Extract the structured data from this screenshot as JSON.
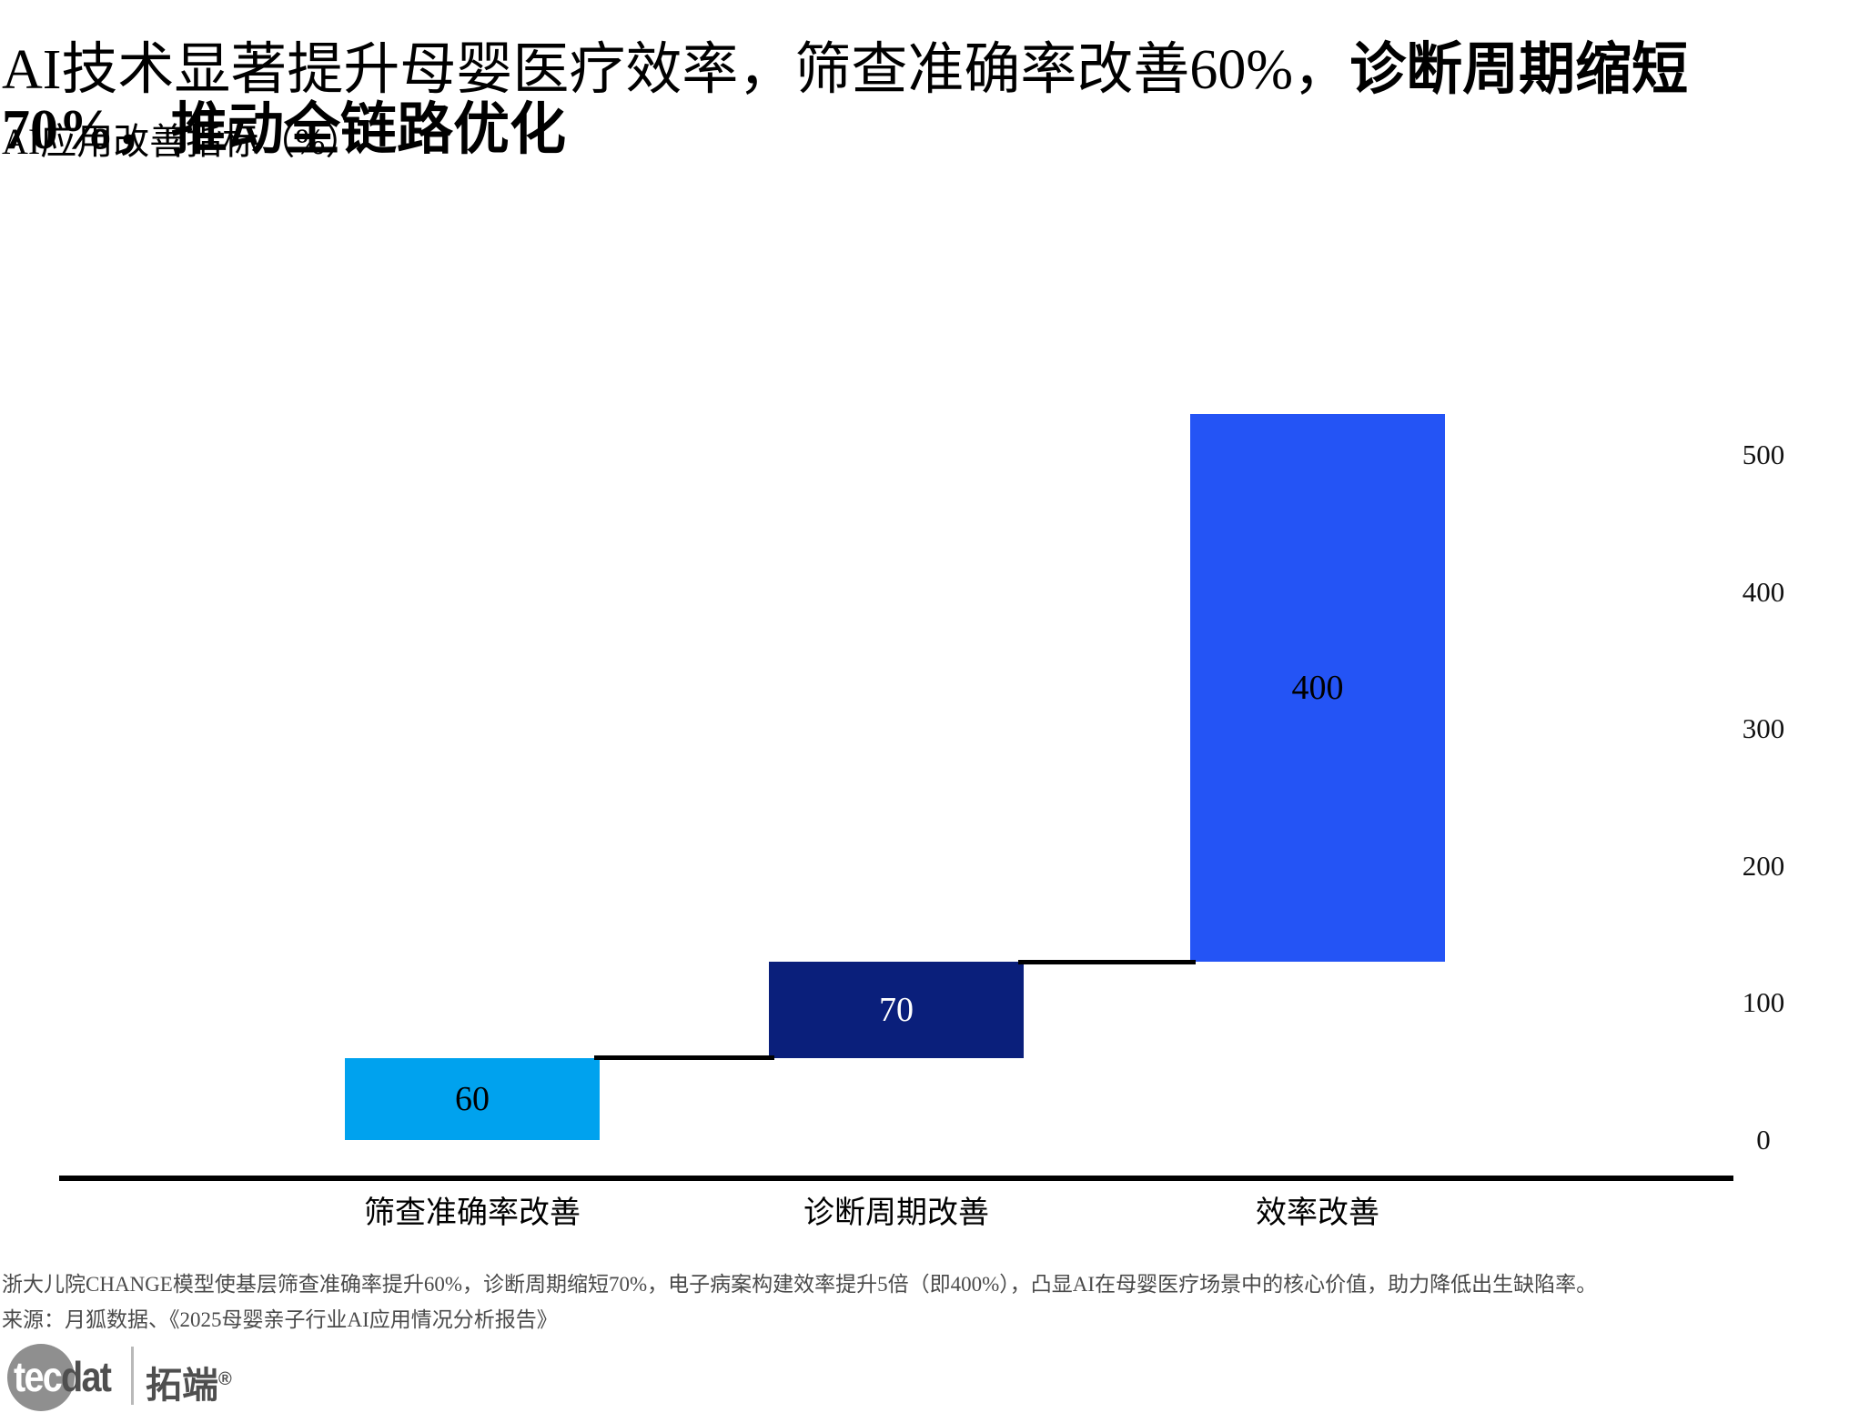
{
  "title": {
    "normal": "AI技术显著提升母婴医疗效率，筛查准确率改善60%，",
    "bold": "诊断周期缩短70%，推动全链路优化"
  },
  "subtitle": "AI应用改善指标（%）",
  "chart_data": {
    "type": "bar",
    "subtype": "waterfall",
    "title": "AI应用改善指标（%）",
    "categories": [
      "筛查准确率改善",
      "诊断周期改善",
      "效率改善"
    ],
    "series": [
      {
        "name": "AI应用改善指标（%）",
        "values": [
          60,
          70,
          400
        ]
      }
    ],
    "cumulative_bases": [
      0,
      60,
      130
    ],
    "cumulative_tops": [
      60,
      130,
      530
    ],
    "bar_value_labels": [
      "60",
      "70",
      "400"
    ],
    "bar_colors": [
      "#00a2ee",
      "#0a1f7b",
      "#2454f5"
    ],
    "bar_label_colors": [
      "#000000",
      "#ffffff",
      "#000000"
    ],
    "xlabel": "",
    "ylabel": "",
    "y_ticks": [
      0,
      100,
      200,
      300,
      400,
      500
    ],
    "ylim": [
      -30,
      540
    ],
    "y_axis_side": "right",
    "grid": false,
    "legend": "none",
    "connector_color": "#000000",
    "axis_line_color": "#000000"
  },
  "footnote": "浙大儿院CHANGE模型使基层筛查准确率提升60%，诊断周期缩短70%，电子病案构建效率提升5倍（即400%），凸显AI在母婴医疗场景中的核心价值，助力降低出生缺陷率。",
  "source": "来源：月狐数据、《2025母婴亲子行业AI应用情况分析报告》",
  "logo": {
    "part_latin_1": "tec",
    "part_latin_2": "dat",
    "cn_name": "拓端",
    "reg_mark": "®"
  }
}
